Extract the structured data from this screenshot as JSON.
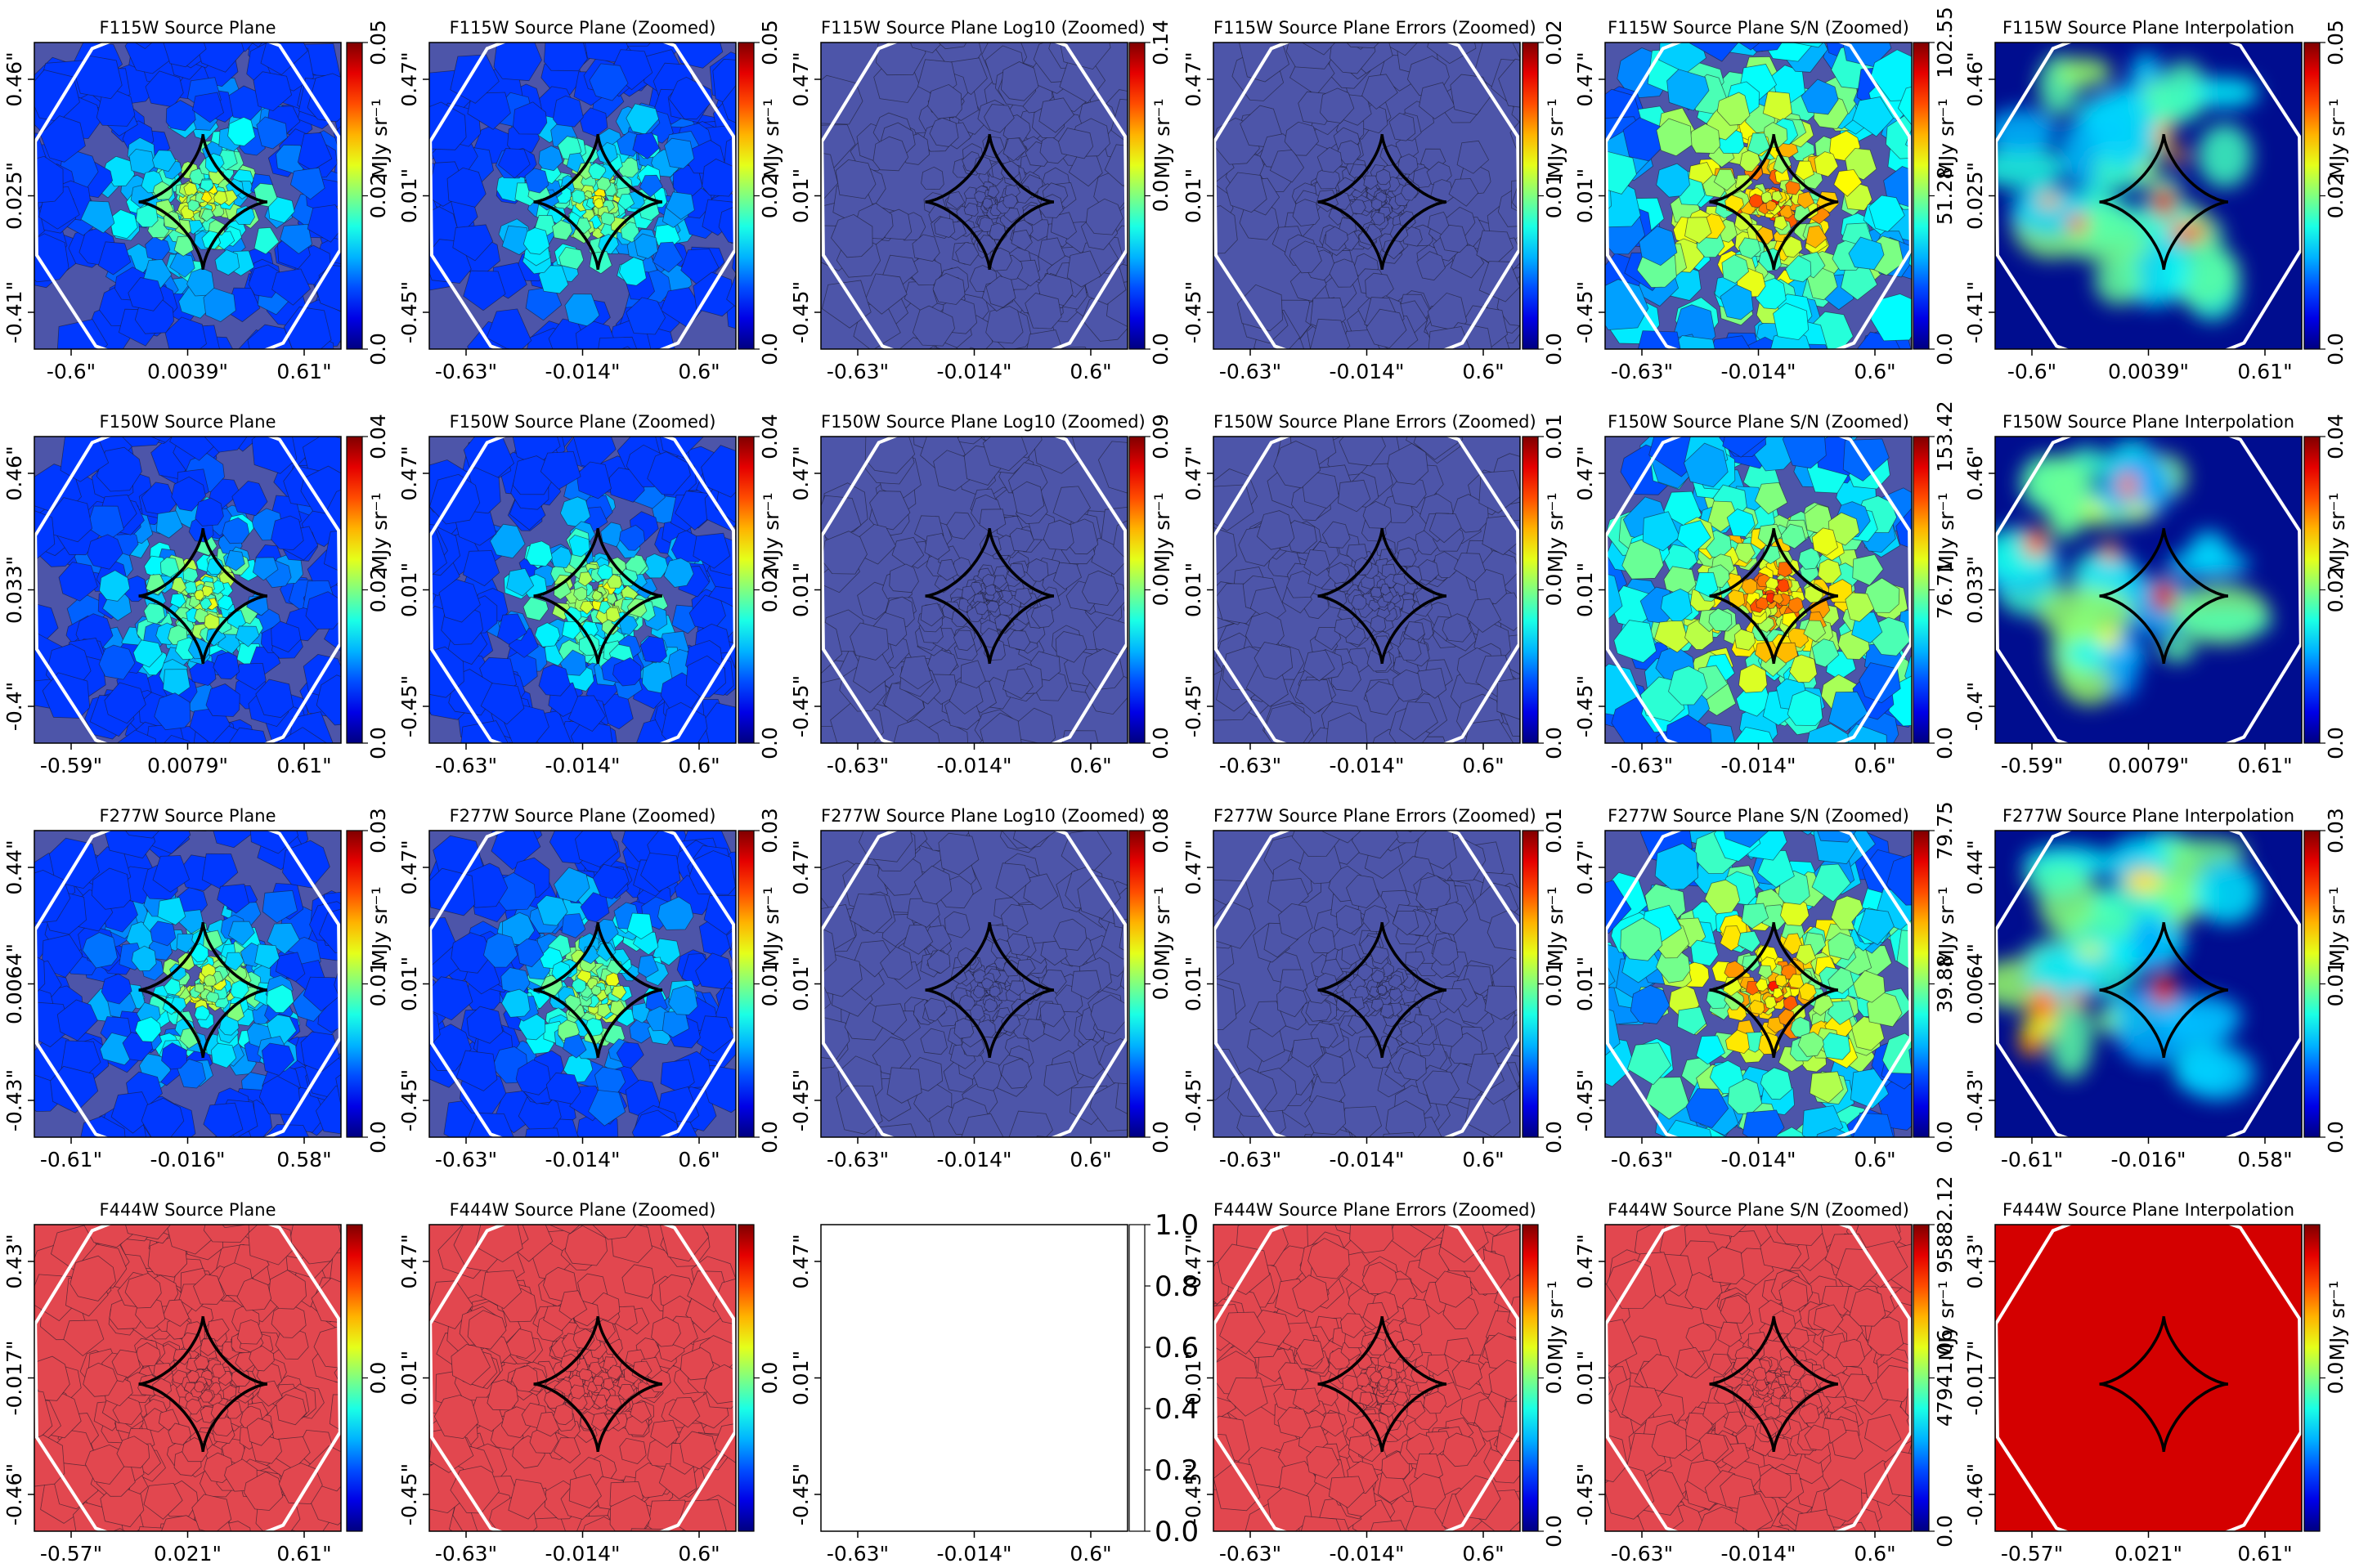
{
  "figure": {
    "rows": [
      {
        "band": "F115W",
        "panels": [
          {
            "title": "F115W Source Plane",
            "kind": "full",
            "fill": "blue",
            "xticks": [
              "-0.6\"",
              "0.0039\"",
              "0.61\""
            ],
            "yticks": [
              "0.46\"",
              "0.025\"",
              "-0.41\""
            ],
            "cbar": {
              "ticks": [
                "0.0",
                "0.02",
                "0.05"
              ],
              "label": "MJy sr⁻¹"
            }
          },
          {
            "title": "F115W Source Plane (Zoomed)",
            "kind": "zoom",
            "fill": "blue",
            "xticks": [
              "-0.63\"",
              "-0.014\"",
              "0.6\""
            ],
            "yticks": [
              "0.47\"",
              "0.01\"",
              "-0.45\""
            ],
            "cbar": {
              "ticks": [
                "0.0",
                "0.02",
                "0.05"
              ],
              "label": "MJy sr⁻¹"
            }
          },
          {
            "title": "F115W Source Plane Log10 (Zoomed)",
            "kind": "zoom",
            "fill": "flat-blue",
            "xticks": [
              "-0.63\"",
              "-0.014\"",
              "0.6\""
            ],
            "yticks": [
              "0.47\"",
              "0.01\"",
              "-0.45\""
            ],
            "cbar": {
              "ticks": [
                "0.0",
                "0.0",
                "0.14"
              ],
              "label": "MJy sr⁻¹"
            }
          },
          {
            "title": "F115W Source Plane Errors (Zoomed)",
            "kind": "zoom",
            "fill": "flat-blue",
            "xticks": [
              "-0.63\"",
              "-0.014\"",
              "0.6\""
            ],
            "yticks": [
              "0.47\"",
              "0.01\"",
              "-0.45\""
            ],
            "cbar": {
              "ticks": [
                "0.0",
                "0.01",
                "0.02"
              ],
              "label": "MJy sr⁻¹"
            }
          },
          {
            "title": "F115W Source Plane S/N (Zoomed)",
            "kind": "zoom",
            "fill": "sn",
            "xticks": [
              "-0.63\"",
              "-0.014\"",
              "0.6\""
            ],
            "yticks": [
              "0.47\"",
              "0.01\"",
              "-0.45\""
            ],
            "cbar": {
              "ticks": [
                "0.0",
                "51.28",
                "102.55"
              ],
              "label": "MJy sr⁻¹"
            }
          },
          {
            "title": "F115W Source Plane Interpolation",
            "kind": "full",
            "fill": "interp",
            "xticks": [
              "-0.6\"",
              "0.0039\"",
              "0.61\""
            ],
            "yticks": [
              "0.46\"",
              "0.025\"",
              "-0.41\""
            ],
            "cbar": {
              "ticks": [
                "0.0",
                "0.02",
                "0.05"
              ],
              "label": "MJy sr⁻¹"
            }
          }
        ]
      },
      {
        "band": "F150W",
        "panels": [
          {
            "title": "F150W Source Plane",
            "kind": "full",
            "fill": "blue",
            "xticks": [
              "-0.59\"",
              "0.0079\"",
              "0.61\""
            ],
            "yticks": [
              "0.46\"",
              "0.033\"",
              "-0.4\""
            ],
            "cbar": {
              "ticks": [
                "0.0",
                "0.02",
                "0.04"
              ],
              "label": "MJy sr⁻¹"
            }
          },
          {
            "title": "F150W Source Plane (Zoomed)",
            "kind": "zoom",
            "fill": "blue",
            "xticks": [
              "-0.63\"",
              "-0.014\"",
              "0.6\""
            ],
            "yticks": [
              "0.47\"",
              "0.01\"",
              "-0.45\""
            ],
            "cbar": {
              "ticks": [
                "0.0",
                "0.02",
                "0.04"
              ],
              "label": "MJy sr⁻¹"
            }
          },
          {
            "title": "F150W Source Plane Log10 (Zoomed)",
            "kind": "zoom",
            "fill": "flat-blue",
            "xticks": [
              "-0.63\"",
              "-0.014\"",
              "0.6\""
            ],
            "yticks": [
              "0.47\"",
              "0.01\"",
              "-0.45\""
            ],
            "cbar": {
              "ticks": [
                "0.0",
                "0.0",
                "0.09"
              ],
              "label": "MJy sr⁻¹"
            }
          },
          {
            "title": "F150W Source Plane Errors (Zoomed)",
            "kind": "zoom",
            "fill": "flat-blue",
            "xticks": [
              "-0.63\"",
              "-0.014\"",
              "0.6\""
            ],
            "yticks": [
              "0.47\"",
              "0.01\"",
              "-0.45\""
            ],
            "cbar": {
              "ticks": [
                "0.0",
                "0.0",
                "0.01"
              ],
              "label": "MJy sr⁻¹"
            }
          },
          {
            "title": "F150W Source Plane S/N (Zoomed)",
            "kind": "zoom",
            "fill": "sn",
            "xticks": [
              "-0.63\"",
              "-0.014\"",
              "0.6\""
            ],
            "yticks": [
              "0.47\"",
              "0.01\"",
              "-0.45\""
            ],
            "cbar": {
              "ticks": [
                "0.0",
                "76.71",
                "153.42"
              ],
              "label": "MJy sr⁻¹"
            }
          },
          {
            "title": "F150W Source Plane Interpolation",
            "kind": "full",
            "fill": "interp",
            "xticks": [
              "-0.59\"",
              "0.0079\"",
              "0.61\""
            ],
            "yticks": [
              "0.46\"",
              "0.033\"",
              "-0.4\""
            ],
            "cbar": {
              "ticks": [
                "0.0",
                "0.02",
                "0.04"
              ],
              "label": "MJy sr⁻¹"
            }
          }
        ]
      },
      {
        "band": "F277W",
        "panels": [
          {
            "title": "F277W Source Plane",
            "kind": "full",
            "fill": "blue",
            "xticks": [
              "-0.61\"",
              "-0.016\"",
              "0.58\""
            ],
            "yticks": [
              "0.44\"",
              "0.0064\"",
              "-0.43\""
            ],
            "cbar": {
              "ticks": [
                "0.0",
                "0.01",
                "0.03"
              ],
              "label": "MJy sr⁻¹"
            }
          },
          {
            "title": "F277W Source Plane (Zoomed)",
            "kind": "zoom",
            "fill": "blue",
            "xticks": [
              "-0.63\"",
              "-0.014\"",
              "0.6\""
            ],
            "yticks": [
              "0.47\"",
              "0.01\"",
              "-0.45\""
            ],
            "cbar": {
              "ticks": [
                "0.0",
                "0.01",
                "0.03"
              ],
              "label": "MJy sr⁻¹"
            }
          },
          {
            "title": "F277W Source Plane Log10 (Zoomed)",
            "kind": "zoom",
            "fill": "flat-blue",
            "xticks": [
              "-0.63\"",
              "-0.014\"",
              "0.6\""
            ],
            "yticks": [
              "0.47\"",
              "0.01\"",
              "-0.45\""
            ],
            "cbar": {
              "ticks": [
                "0.0",
                "0.0",
                "0.08"
              ],
              "label": "MJy sr⁻¹"
            }
          },
          {
            "title": "F277W Source Plane Errors (Zoomed)",
            "kind": "zoom",
            "fill": "flat-blue",
            "xticks": [
              "-0.63\"",
              "-0.014\"",
              "0.6\""
            ],
            "yticks": [
              "0.47\"",
              "0.01\"",
              "-0.45\""
            ],
            "cbar": {
              "ticks": [
                "0.0",
                "0.01",
                "0.01"
              ],
              "label": "MJy sr⁻¹"
            }
          },
          {
            "title": "F277W Source Plane S/N (Zoomed)",
            "kind": "zoom",
            "fill": "sn",
            "xticks": [
              "-0.63\"",
              "-0.014\"",
              "0.6\""
            ],
            "yticks": [
              "0.47\"",
              "0.01\"",
              "-0.45\""
            ],
            "cbar": {
              "ticks": [
                "0.0",
                "39.88",
                "79.75"
              ],
              "label": "MJy sr⁻¹"
            }
          },
          {
            "title": "F277W Source Plane Interpolation",
            "kind": "full",
            "fill": "interp",
            "xticks": [
              "-0.61\"",
              "-0.016\"",
              "0.58\""
            ],
            "yticks": [
              "0.44\"",
              "0.0064\"",
              "-0.43\""
            ],
            "cbar": {
              "ticks": [
                "0.0",
                "0.01",
                "0.03"
              ],
              "label": "MJy sr⁻¹"
            }
          }
        ]
      },
      {
        "band": "F444W",
        "panels": [
          {
            "title": "F444W Source Plane",
            "kind": "full",
            "fill": "red",
            "xticks": [
              "-0.57\"",
              "0.021\"",
              "0.61\""
            ],
            "yticks": [
              "0.43\"",
              "-0.017\"",
              "-0.46\""
            ],
            "cbar": {
              "ticks": [
                "0.0"
              ],
              "label": ""
            }
          },
          {
            "title": "F444W Source Plane (Zoomed)",
            "kind": "zoom",
            "fill": "red",
            "xticks": [
              "-0.63\"",
              "-0.014\"",
              "0.6\""
            ],
            "yticks": [
              "0.47\"",
              "0.01\"",
              "-0.45\""
            ],
            "cbar": {
              "ticks": [
                "0.0"
              ],
              "label": ""
            }
          },
          {
            "title": "",
            "kind": "empty",
            "fill": "none",
            "xticks": [
              "-0.63\"",
              "-0.014\"",
              "0.6\""
            ],
            "yticks": [
              "0.47\"",
              "0.01\"",
              "-0.45\""
            ],
            "cbar": {
              "ticks": [
                "0.0",
                "0.2",
                "0.4",
                "0.6",
                "0.8",
                "1.0"
              ],
              "label": ""
            }
          },
          {
            "title": "F444W Source Plane Errors (Zoomed)",
            "kind": "zoom",
            "fill": "red",
            "xticks": [
              "-0.63\"",
              "-0.014\"",
              "0.6\""
            ],
            "yticks": [
              "0.47\"",
              "0.01\"",
              "-0.45\""
            ],
            "cbar": {
              "ticks": [
                "0.0",
                "0.0"
              ],
              "label": "MJy sr⁻¹"
            }
          },
          {
            "title": "F444W Source Plane S/N (Zoomed)",
            "kind": "zoom",
            "fill": "red",
            "xticks": [
              "-0.63\"",
              "-0.014\"",
              "0.6\""
            ],
            "yticks": [
              "0.47\"",
              "0.01\"",
              "-0.45\""
            ],
            "cbar": {
              "ticks": [
                "0.0",
                "47941.06",
                "95882.12"
              ],
              "label": "MJy sr⁻¹"
            }
          },
          {
            "title": "F444W Source Plane Interpolation",
            "kind": "full",
            "fill": "solid-red",
            "xticks": [
              "-0.57\"",
              "0.021\"",
              "0.61\""
            ],
            "yticks": [
              "0.43\"",
              "-0.017\"",
              "-0.46\""
            ],
            "cbar": {
              "ticks": [
                "0.0"
              ],
              "label": "MJy sr⁻¹"
            }
          }
        ]
      }
    ]
  },
  "chart_data": {
    "type": "heatmap",
    "colormap": "jet",
    "grid": "4x6",
    "caustic_color": "#000000",
    "critical_curve_color": "#ffffff"
  }
}
